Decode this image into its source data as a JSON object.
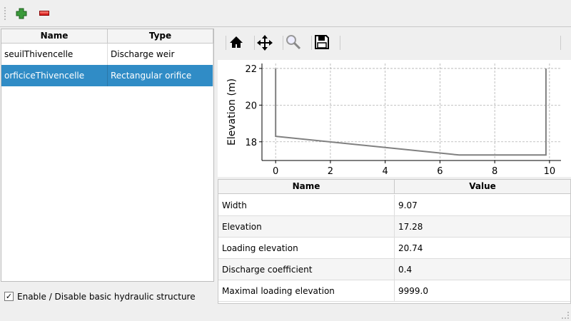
{
  "toolbar": {
    "add_icon": "plus-icon",
    "remove_icon": "minus-icon"
  },
  "structures": {
    "columns": [
      "Name",
      "Type"
    ],
    "rows": [
      {
        "name": "seuilThivencelle",
        "type": "Discharge weir",
        "selected": false
      },
      {
        "name": "orficiceThivencelle",
        "type": "Rectangular orifice",
        "selected": true
      }
    ]
  },
  "enable_checkbox": {
    "label": "Enable / Disable basic hydraulic structure",
    "checked": true,
    "mark": "✓"
  },
  "plot_toolbar": {
    "icons": [
      "home-icon",
      "pan-icon",
      "zoom-icon",
      "save-icon"
    ]
  },
  "chart_data": {
    "type": "line",
    "ylabel": "Elevation (m)",
    "xlabel": "",
    "xlim": [
      -0.5,
      10.42
    ],
    "ylim": [
      16.98,
      22.27
    ],
    "xticks": [
      0,
      2,
      4,
      6,
      8,
      10
    ],
    "yticks": [
      18,
      20,
      22
    ],
    "grid": true,
    "color": "#808080",
    "x": [
      0,
      0,
      6.7,
      9.87,
      9.87
    ],
    "y": [
      22,
      18.3,
      17.28,
      17.28,
      22
    ]
  },
  "properties": {
    "columns": [
      "Name",
      "Value"
    ],
    "rows": [
      {
        "name": "Width",
        "value": "9.07"
      },
      {
        "name": "Elevation",
        "value": "17.28"
      },
      {
        "name": "Loading elevation",
        "value": "20.74"
      },
      {
        "name": "Discharge coefficient",
        "value": "0.4"
      },
      {
        "name": "Maximal loading elevation",
        "value": "9999.0"
      }
    ]
  }
}
